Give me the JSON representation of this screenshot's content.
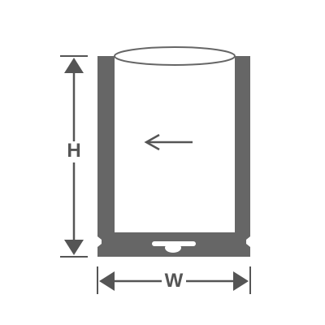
{
  "labels": {
    "height": "H",
    "width": "W"
  },
  "icons": {
    "direction_arrow": "arrow-left-icon",
    "height_dimension": "vertical-dimension-arrow-icon",
    "width_dimension": "horizontal-dimension-arrow-icon"
  },
  "colors": {
    "bag": "#666666",
    "interior": "#ffffff",
    "dimension_lines": "#555555",
    "label_text": "#555555"
  }
}
